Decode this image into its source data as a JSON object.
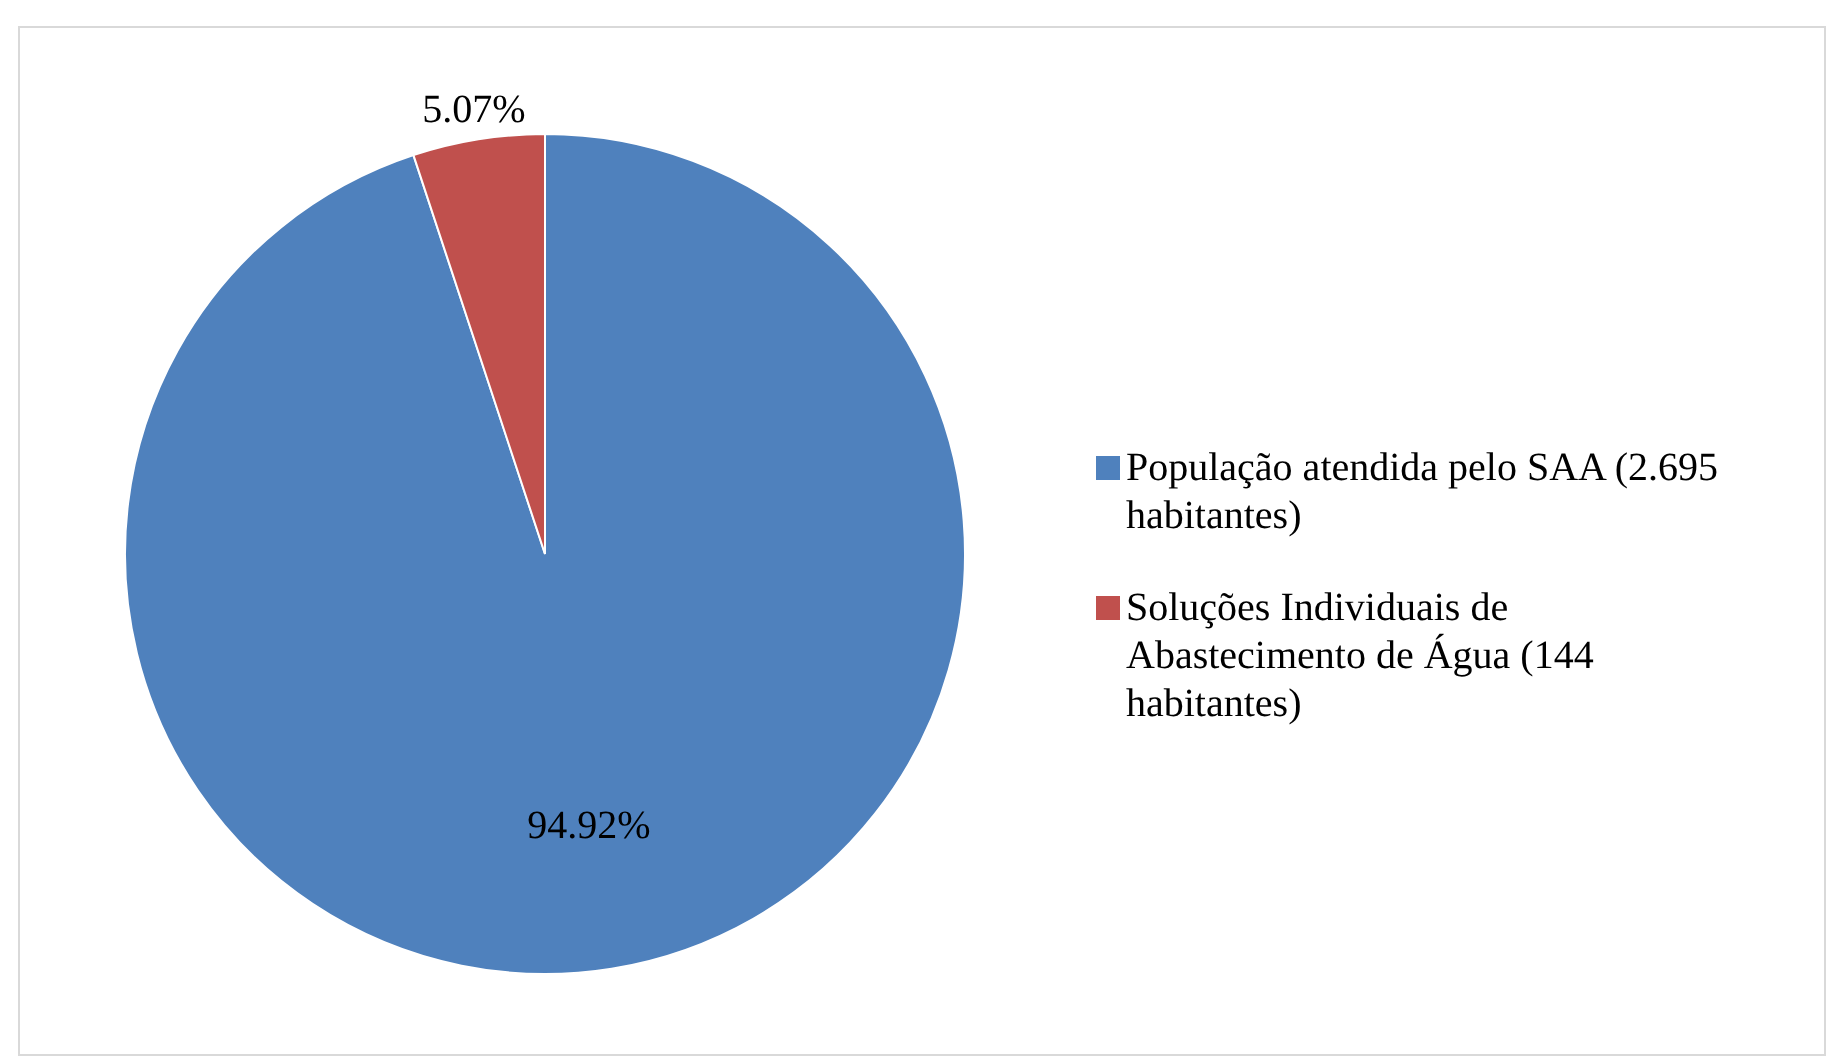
{
  "chart_data": {
    "type": "pie",
    "categories": [
      "População atendida pelo SAA (2.695 habitantes)",
      "Soluções Individuais de Abastecimento de Água (144 habitantes)"
    ],
    "values": [
      94.92,
      5.07
    ],
    "colors": [
      "#4f81bd",
      "#c0504d"
    ],
    "value_labels": [
      "94.92%",
      "5.07%"
    ],
    "legend": "right"
  }
}
